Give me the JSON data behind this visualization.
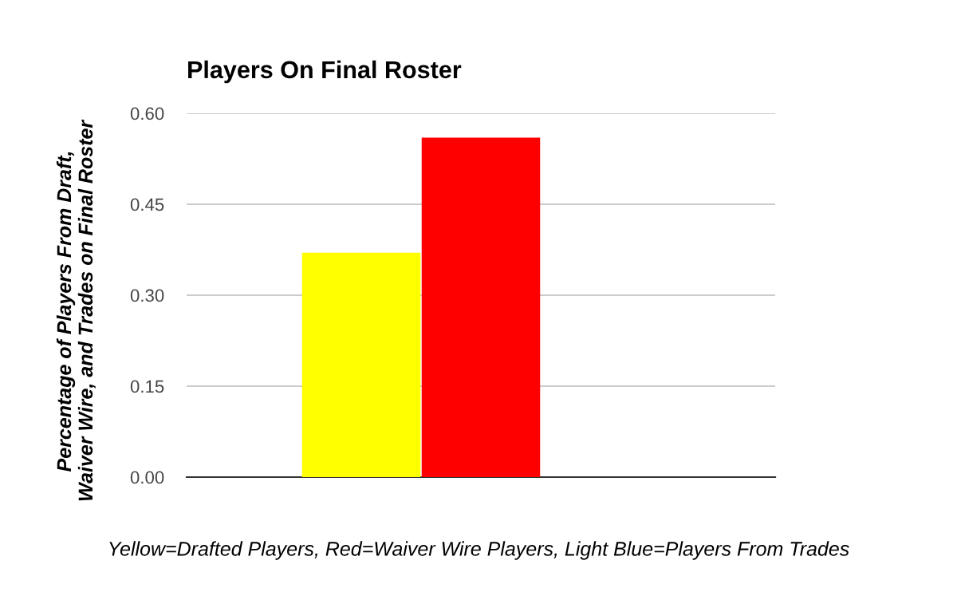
{
  "chart_data": {
    "type": "bar",
    "title": "Players On Final Roster",
    "xlabel": "Yellow=Drafted Players, Red=Waiver Wire Players, Light Blue=Players From Trades",
    "ylabel": "Percentage of Players From Draft, Waiver Wire, and Trades on Final Roster",
    "categories": [
      null
    ],
    "series": [
      {
        "color": "#ffff00",
        "values": [
          0.37
        ]
      },
      {
        "color": "#ff0000",
        "values": [
          0.56
        ]
      },
      {
        "values": [
          null
        ]
      }
    ],
    "ylim": [
      0,
      0.6
    ],
    "yticks": [
      {
        "value": 0,
        "label": "0.00"
      },
      {
        "value": 0.15,
        "label": "0.15"
      },
      {
        "value": 0.3,
        "label": "0.30"
      },
      {
        "value": 0.45,
        "label": "0.45"
      },
      {
        "value": 0.6,
        "label": "0.60"
      }
    ],
    "grid": "y",
    "legend": false
  }
}
